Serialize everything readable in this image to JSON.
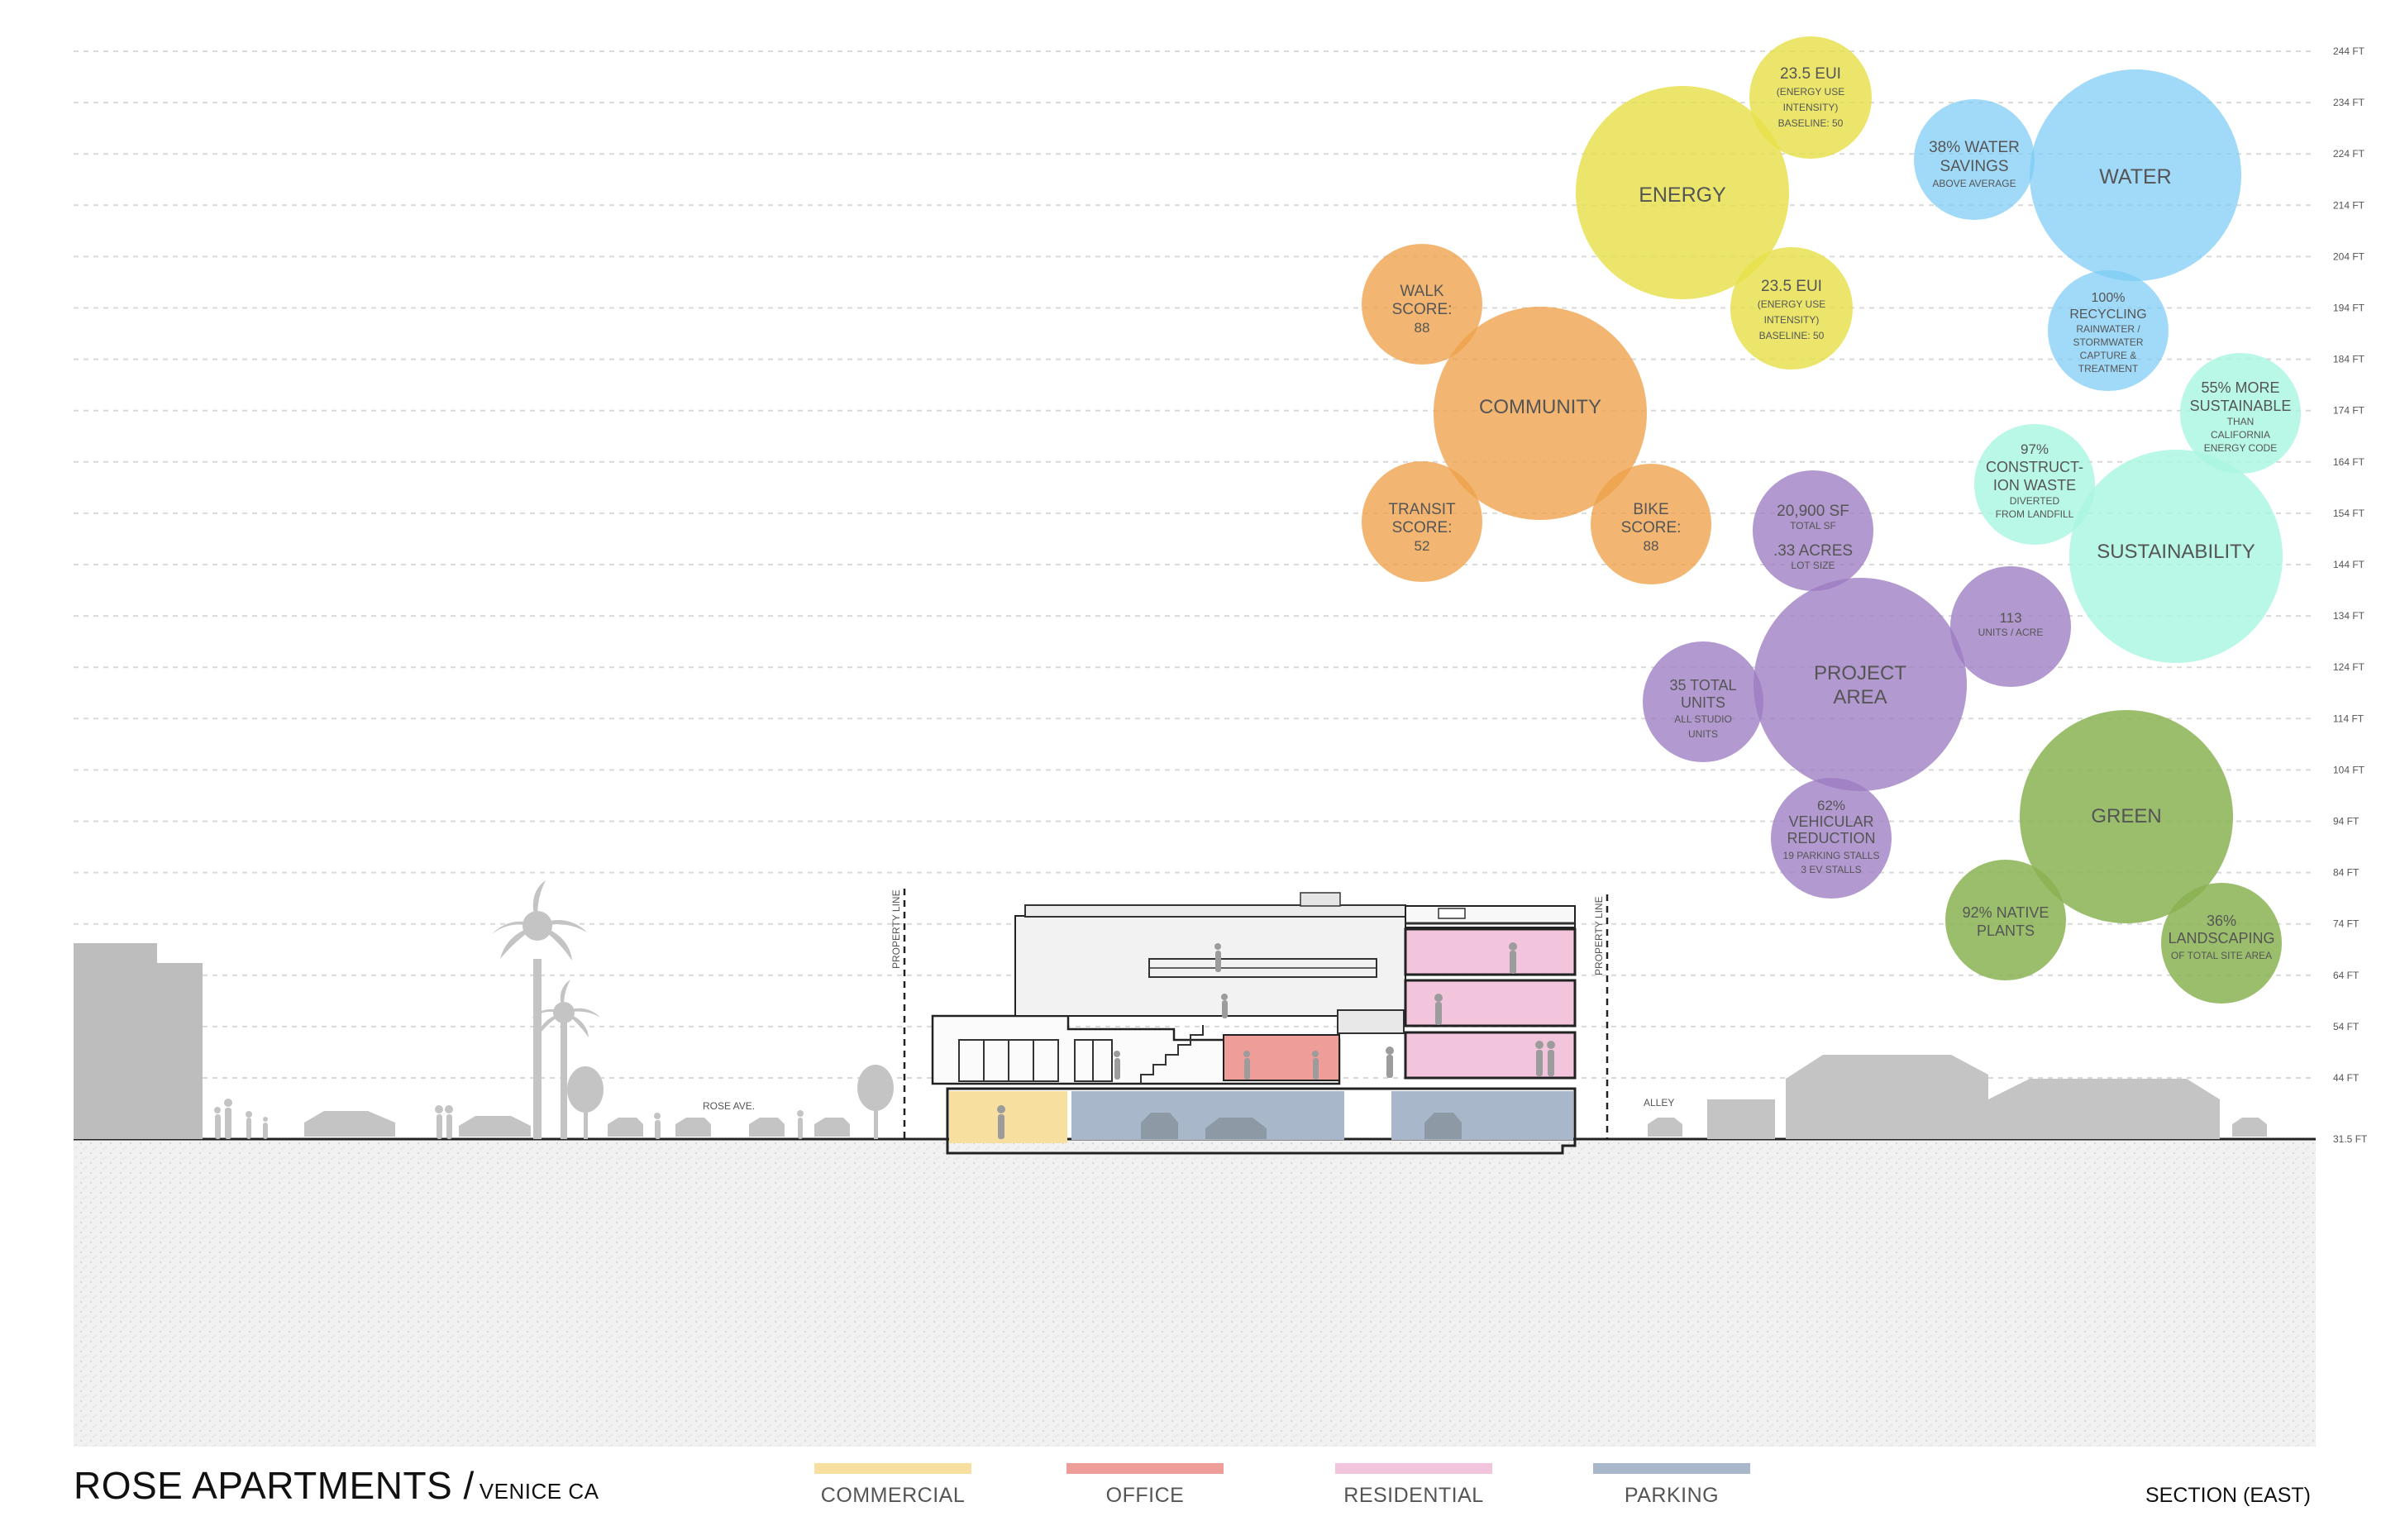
{
  "elevations": [
    "244 FT",
    "234 FT",
    "224 FT",
    "214 FT",
    "204 FT",
    "194 FT",
    "184 FT",
    "174 FT",
    "164 FT",
    "154 FT",
    "144 FT",
    "134 FT",
    "124 FT",
    "114 FT",
    "104 FT",
    "94 FT",
    "84 FT",
    "74 FT",
    "64 FT",
    "54 FT",
    "44 FT",
    "31.5 FT"
  ],
  "street_labels": {
    "rose_ave": "ROSE AVE.",
    "alley": "ALLEY",
    "property_line_left": "PROPERTY LINE",
    "property_line_right": "PROPERTY LINE"
  },
  "bubbles": {
    "energy": {
      "title": "ENERGY",
      "a": {
        "l1": "23.5 EUI",
        "l2": "(ENERGY USE",
        "l3": "INTENSITY)",
        "l4": "BASELINE: 50"
      },
      "b": {
        "l1": "23.5 EUI",
        "l2": "(ENERGY USE",
        "l3": "INTENSITY)",
        "l4": "BASELINE: 50"
      }
    },
    "water": {
      "title": "WATER",
      "a": {
        "l1": "38% WATER",
        "l2": "SAVINGS",
        "l3": "ABOVE AVERAGE"
      },
      "b": {
        "l1": "100%",
        "l2": "RECYCLING",
        "l3": "RAINWATER /",
        "l4": "STORMWATER",
        "l5": "CAPTURE &",
        "l6": "TREATMENT"
      }
    },
    "community": {
      "title": "COMMUNITY",
      "walk": {
        "l1": "WALK",
        "l2": "SCORE:",
        "l3": "88"
      },
      "transit": {
        "l1": "TRANSIT",
        "l2": "SCORE:",
        "l3": "52"
      },
      "bike": {
        "l1": "BIKE",
        "l2": "SCORE:",
        "l3": "88"
      }
    },
    "sustainability": {
      "title": "SUSTAINABILITY",
      "a": {
        "l1": "55% MORE",
        "l2": "SUSTAINABLE",
        "l3": "THAN",
        "l4": "CALIFORNIA",
        "l5": "ENERGY CODE"
      },
      "b": {
        "l1": "97%",
        "l2": "CONSTRUCT-",
        "l3": "ION WASTE",
        "l4": "DIVERTED",
        "l5": "FROM LANDFILL"
      }
    },
    "project": {
      "title_l1": "PROJECT",
      "title_l2": "AREA",
      "sf": {
        "l1": "20,900 SF",
        "l2": "TOTAL SF",
        "l3": ".33 ACRES",
        "l4": "LOT SIZE"
      },
      "units_acre": {
        "l1": "113",
        "l2": "UNITS / ACRE"
      },
      "total_units": {
        "l1": "35 TOTAL",
        "l2": "UNITS",
        "l3": "ALL STUDIO",
        "l4": "UNITS"
      },
      "vehicular": {
        "l1": "62%",
        "l2": "VEHICULAR",
        "l3": "REDUCTION",
        "l4": "19 PARKING STALLS",
        "l5": "3 EV STALLS"
      }
    },
    "green": {
      "title": "GREEN",
      "native": {
        "l1": "92% NATIVE",
        "l2": "PLANTS"
      },
      "landscaping": {
        "l1": "36%",
        "l2": "LANDSCAPING",
        "l3": "OF TOTAL SITE AREA"
      }
    }
  },
  "colors": {
    "energy": "#e6e14a",
    "water": "#7cccf5",
    "community": "#eea24a",
    "sustainability": "#a9f5e1",
    "project": "#9c7cc2",
    "green": "#89b352",
    "commercial": "#f7dfa0",
    "office": "#ef9d98",
    "residential": "#f3c5dd",
    "parking": "#a8b8ca"
  },
  "footer": {
    "title": "ROSE APARTMENTS /",
    "subtitle": "VENICE CA",
    "section": "SECTION (EAST)"
  },
  "legend": [
    {
      "label": "COMMERCIAL",
      "color": "#f7dfa0"
    },
    {
      "label": "OFFICE",
      "color": "#ef9d98"
    },
    {
      "label": "RESIDENTIAL",
      "color": "#f3c5dd"
    },
    {
      "label": "PARKING",
      "color": "#a8b8ca"
    }
  ]
}
